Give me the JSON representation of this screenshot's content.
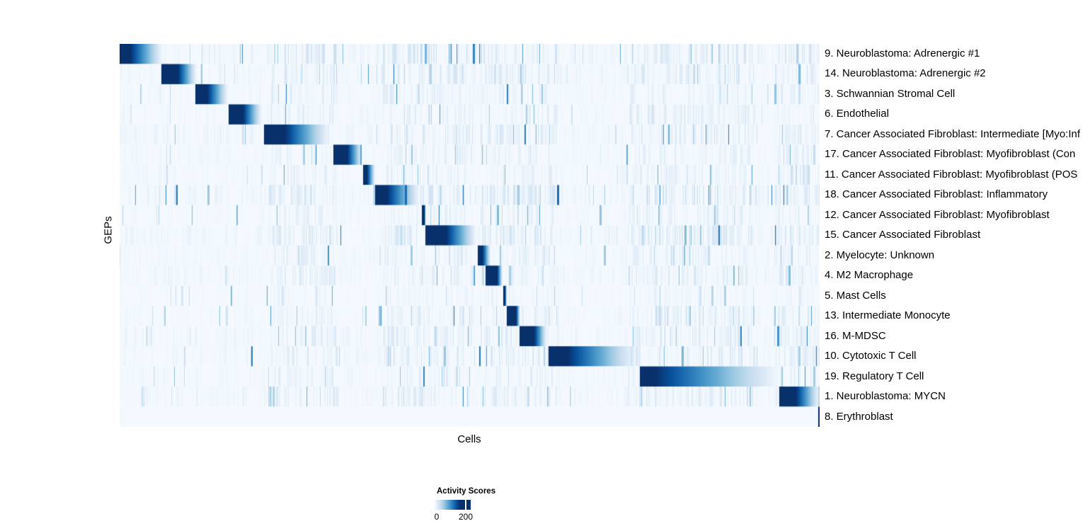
{
  "chart_data": {
    "type": "heatmap",
    "xlabel": "Cells",
    "ylabel": "GEPs",
    "n_rows": 19,
    "colorbar": {
      "title": "Activity Scores",
      "tick_labels": [
        "0",
        "200"
      ],
      "min_value": 0,
      "tick_value": 200,
      "tick_fraction": 0.86,
      "saturation_fraction": 0.69,
      "scale_colors": [
        "#f7fbff",
        "#deebf7",
        "#c6dbef",
        "#9ecae1",
        "#6baed6",
        "#4292c6",
        "#2171b5",
        "#08519c",
        "#08306b"
      ],
      "color_low": "#f7fbff",
      "color_high": "#08306b"
    },
    "seed": 1337,
    "noise_clusters": [
      [
        0.215,
        0.31
      ],
      [
        0.375,
        0.505
      ],
      [
        0.515,
        0.625
      ],
      [
        0.725,
        0.905
      ],
      [
        0.935,
        1.0
      ]
    ],
    "rows": [
      {
        "label": "9. Neuroblastoma: Adrenergic #1",
        "block": {
          "start": 0.0,
          "dark_end": 0.015,
          "fade_end": 0.062
        },
        "noise": 0.8
      },
      {
        "label": "14. Neuroblastoma: Adrenergic #2",
        "block": {
          "start": 0.06,
          "dark_end": 0.083,
          "fade_end": 0.11
        },
        "noise": 0.7
      },
      {
        "label": "3. Schwannian Stromal Cell",
        "block": {
          "start": 0.108,
          "dark_end": 0.125,
          "fade_end": 0.155
        },
        "noise": 0.5
      },
      {
        "label": "6. Endothelial",
        "block": {
          "start": 0.156,
          "dark_end": 0.176,
          "fade_end": 0.203
        },
        "noise": 0.5
      },
      {
        "label": "7. Cancer Associated Fibroblast: Intermediate [Myo:Inf",
        "block": {
          "start": 0.206,
          "dark_end": 0.236,
          "fade_end": 0.3
        },
        "noise": 0.7
      },
      {
        "label": "17. Cancer Associated Fibroblast: Myofibroblast (Con",
        "block": {
          "start": 0.305,
          "dark_end": 0.325,
          "fade_end": 0.347
        },
        "noise": 0.5
      },
      {
        "label": "11. Cancer Associated Fibroblast: Myofibroblast (POS",
        "block": {
          "start": 0.348,
          "dark_end": 0.353,
          "fade_end": 0.365
        },
        "noise": 0.5
      },
      {
        "label": "18. Cancer Associated Fibroblast: Inflammatory",
        "block": {
          "start": 0.365,
          "dark_end": 0.382,
          "fade_end": 0.429
        },
        "noise": 0.8
      },
      {
        "label": "12. Cancer Associated Fibroblast: Myofibroblast",
        "block": {
          "start": 0.432,
          "dark_end": 0.435,
          "fade_end": 0.437
        },
        "noise": 0.45
      },
      {
        "label": "15. Cancer Associated Fibroblast",
        "block": {
          "start": 0.437,
          "dark_end": 0.466,
          "fade_end": 0.51
        },
        "noise": 0.7
      },
      {
        "label": "2. Myelocyte: Unknown",
        "block": {
          "start": 0.512,
          "dark_end": 0.518,
          "fade_end": 0.53
        },
        "noise": 0.5
      },
      {
        "label": "4. M2 Macrophage",
        "block": {
          "start": 0.523,
          "dark_end": 0.539,
          "fade_end": 0.547
        },
        "noise": 0.6
      },
      {
        "label": "5. Mast Cells",
        "block": {
          "start": 0.548,
          "dark_end": 0.55,
          "fade_end": 0.553
        },
        "noise": 0.35
      },
      {
        "label": "13. Intermediate Monocyte",
        "block": {
          "start": 0.553,
          "dark_end": 0.566,
          "fade_end": 0.572
        },
        "noise": 0.5
      },
      {
        "label": "16. M-MDSC",
        "block": {
          "start": 0.571,
          "dark_end": 0.592,
          "fade_end": 0.61
        },
        "noise": 0.6
      },
      {
        "label": "10. Cytotoxic T Cell",
        "block": {
          "start": 0.613,
          "dark_end": 0.64,
          "fade_end": 0.739
        },
        "noise": 0.6
      },
      {
        "label": "19. Regulatory T Cell",
        "block": {
          "start": 0.743,
          "dark_end": 0.765,
          "fade_end": 0.944
        },
        "noise": 0.5
      },
      {
        "label": "1. Neuroblastoma: MYCN",
        "block": {
          "start": 0.942,
          "dark_end": 0.966,
          "fade_end": 1.0
        },
        "noise": 0.6
      },
      {
        "label": "8. Erythroblast",
        "block": {
          "start": 0.9975,
          "dark_end": 1.0,
          "fade_end": 1.0
        },
        "noise": 0.03
      }
    ]
  }
}
